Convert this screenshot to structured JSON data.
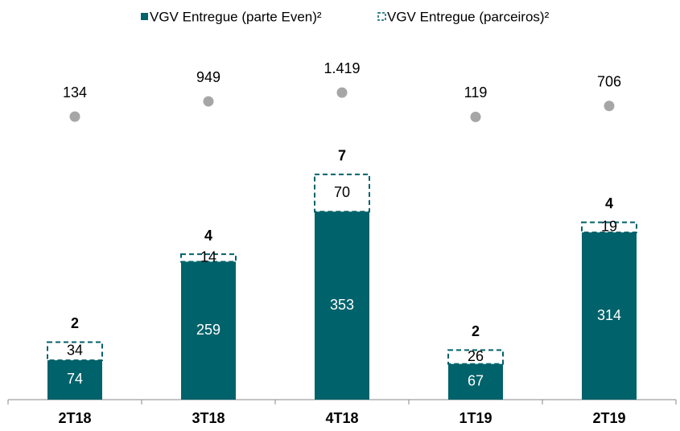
{
  "chart_data": {
    "type": "bar",
    "categories": [
      "2T18",
      "3T18",
      "4T18",
      "1T19",
      "2T19"
    ],
    "series": [
      {
        "name": "VGV Entregue (parte Even)²",
        "color": "#00626a",
        "values": [
          74,
          259,
          353,
          67,
          314
        ]
      },
      {
        "name": "VGV Entregue (parceiros)²",
        "color": "#00626a",
        "values": [
          34,
          14,
          70,
          26,
          19
        ],
        "dashed": true
      }
    ],
    "counts": [
      2,
      4,
      7,
      2,
      4
    ],
    "dots": {
      "color": "#a6a6a6",
      "values": [
        134,
        949,
        1419,
        119,
        706
      ],
      "value_labels": [
        "134",
        "949",
        "1.419",
        "119",
        "706"
      ],
      "axis": "y2"
    },
    "ylim": [
      0,
      690
    ],
    "y2lim": [
      -15000,
      4650
    ]
  }
}
